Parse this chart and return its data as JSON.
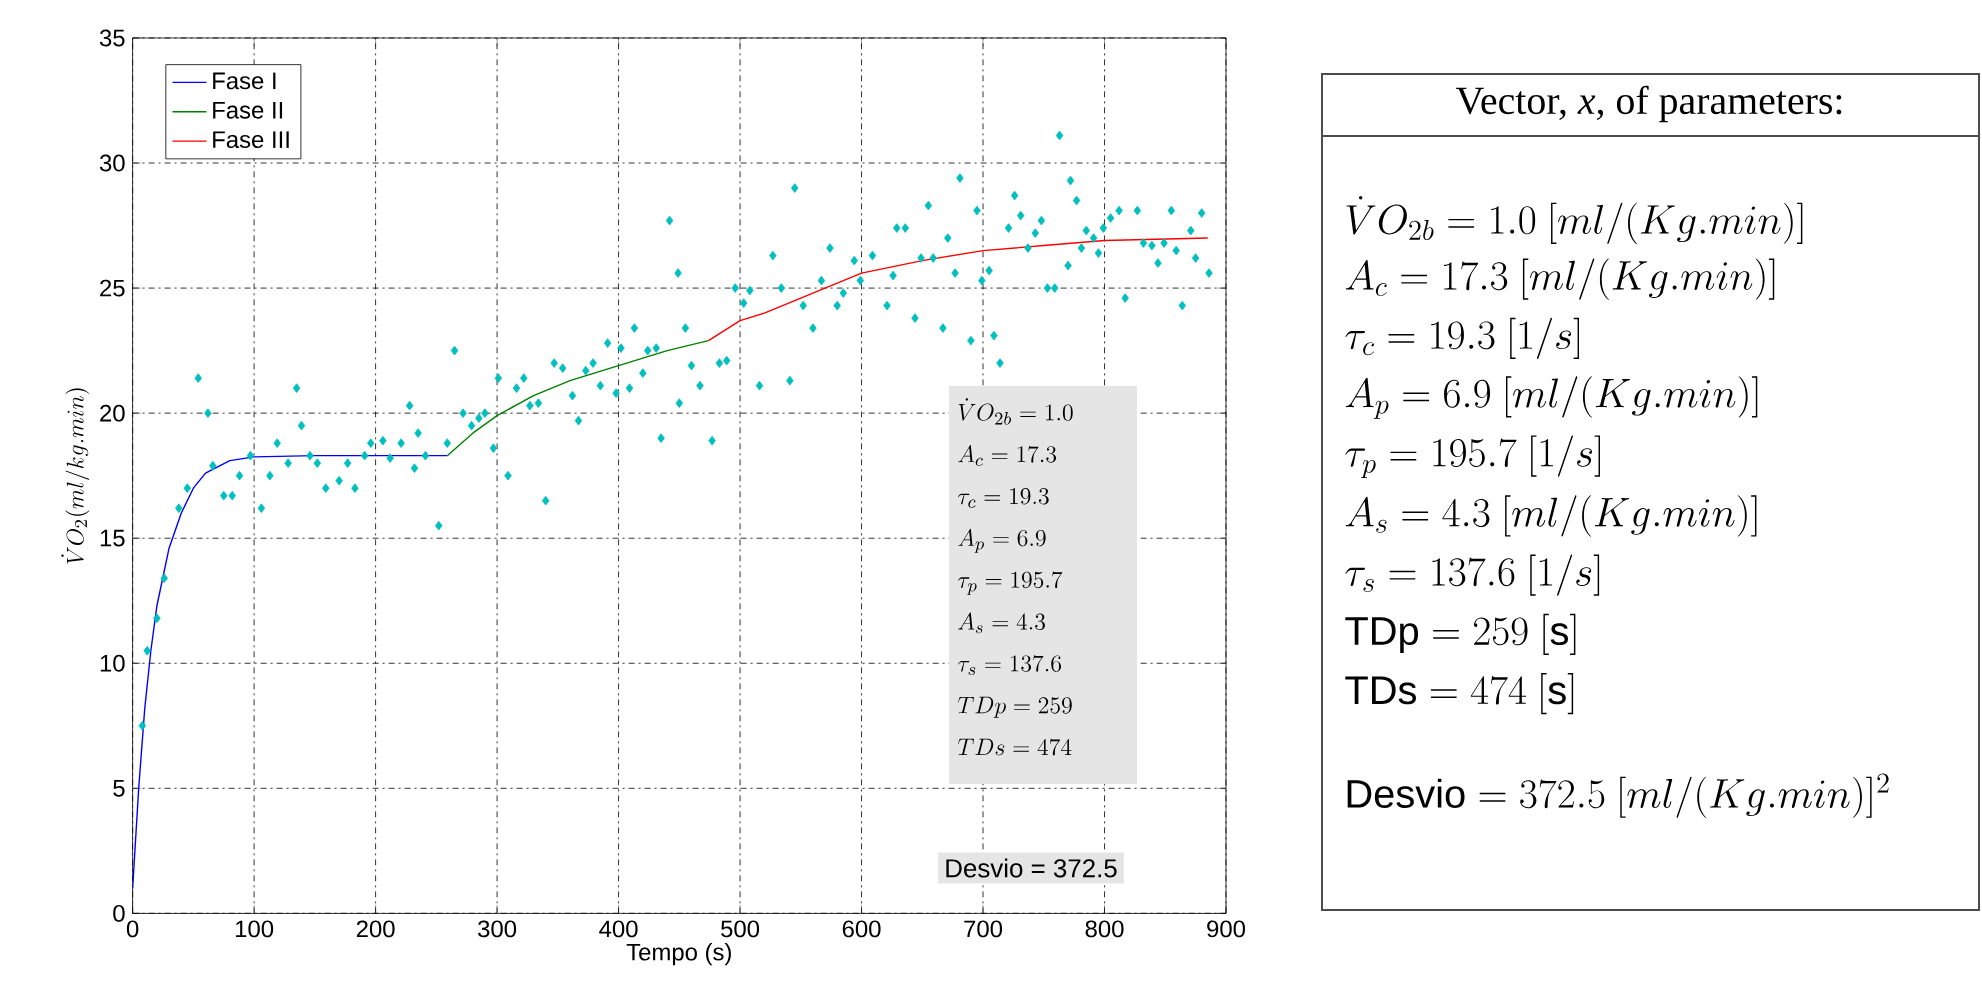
{
  "chart_data": [
    {
      "type": "scatter",
      "xlabel": "Tempo (s)",
      "ylabel": "\\dot{V}O_2(ml/kg.min)",
      "xlim": [
        0,
        900
      ],
      "ylim": [
        0,
        35
      ],
      "xticks": [
        0,
        100,
        200,
        300,
        400,
        500,
        600,
        700,
        800,
        900
      ],
      "yticks": [
        0,
        5,
        10,
        15,
        20,
        25,
        30,
        35
      ],
      "grid": true,
      "legend": "top left",
      "annotations": [
        "\\dot{V}O_{2b} = 1.0",
        "A_c = 17.3",
        "\\tau_c = 19.3",
        "A_p = 6.9",
        "\\tau_p = 195.7",
        "A_s = 4.3",
        "\\tau_s = 137.6",
        "TDp = 259",
        "TDs = 474",
        "Desvio = 372.5"
      ],
      "series": [
        {
          "type": "scatter",
          "color": "#00bfbf",
          "marker": "diamond",
          "x": [
            8,
            12,
            20,
            26,
            38,
            45,
            54,
            62,
            66,
            75,
            82,
            88,
            97,
            106,
            113,
            119,
            128,
            135,
            139,
            146,
            152,
            159,
            170,
            177,
            183,
            191,
            196,
            206,
            212,
            221,
            228,
            232,
            235,
            241,
            252,
            259,
            265,
            272,
            279,
            285,
            290,
            297,
            301,
            309,
            316,
            322,
            327,
            334,
            340,
            347,
            354,
            362,
            367,
            373,
            379,
            385,
            391,
            398,
            402,
            409,
            413,
            420,
            424,
            431,
            435,
            442,
            449,
            450,
            455,
            460,
            467,
            477,
            483,
            489,
            496,
            503,
            508,
            516,
            527,
            534,
            541,
            545,
            552,
            560,
            567,
            574,
            580,
            585,
            594,
            599,
            609,
            621,
            626,
            629,
            636,
            644,
            649,
            655,
            659,
            667,
            671,
            677,
            681,
            690,
            695,
            699,
            705,
            709,
            714,
            721,
            726,
            731,
            737,
            743,
            748,
            753,
            759,
            763,
            770,
            772,
            777,
            781,
            785,
            791,
            795,
            799,
            805,
            812,
            817,
            827,
            832,
            839,
            844,
            849,
            855,
            859,
            864,
            871,
            875,
            880,
            886
          ],
          "values": [
            7.5,
            10.5,
            11.8,
            13.4,
            16.2,
            17.0,
            21.4,
            20.0,
            17.9,
            16.7,
            16.7,
            17.5,
            18.3,
            16.2,
            17.5,
            18.8,
            18.0,
            21.0,
            19.5,
            18.3,
            18.0,
            17.0,
            17.3,
            18.0,
            17.0,
            18.3,
            18.8,
            18.9,
            18.2,
            18.8,
            20.3,
            17.8,
            19.2,
            18.3,
            15.5,
            18.8,
            22.5,
            20.0,
            19.5,
            19.8,
            20.0,
            18.6,
            21.4,
            17.5,
            21.0,
            21.4,
            20.3,
            20.4,
            16.5,
            22.0,
            21.8,
            20.7,
            19.7,
            21.7,
            22.0,
            21.1,
            22.8,
            20.8,
            22.6,
            21.0,
            23.4,
            21.6,
            22.5,
            22.6,
            19.0,
            27.7,
            25.6,
            20.4,
            23.4,
            21.9,
            21.1,
            18.9,
            22.0,
            22.1,
            25.0,
            24.4,
            24.9,
            21.1,
            26.3,
            25.0,
            21.3,
            29.0,
            24.3,
            23.4,
            25.3,
            26.6,
            24.3,
            24.8,
            26.1,
            25.3,
            26.3,
            24.3,
            25.5,
            27.4,
            27.4,
            23.8,
            26.2,
            28.3,
            26.2,
            23.4,
            27.0,
            25.6,
            29.4,
            22.9,
            28.1,
            25.3,
            25.7,
            23.1,
            22.0,
            27.4,
            28.7,
            27.9,
            26.6,
            27.2,
            27.7,
            25.0,
            25.0,
            31.1,
            25.9,
            29.3,
            28.5,
            26.6,
            27.3,
            27.0,
            26.4,
            27.4,
            27.8,
            28.1,
            24.6,
            28.1,
            26.8,
            26.7,
            26.0,
            26.8,
            28.1,
            26.5,
            24.3,
            27.3,
            26.2,
            28.0,
            25.6
          ]
        },
        {
          "type": "line",
          "name": "Fase I",
          "color": "#0000ff",
          "marker": "none",
          "x": [
            0,
            5,
            10,
            15,
            20,
            30,
            40,
            50,
            60,
            80,
            100,
            150,
            259
          ],
          "values": [
            1.0,
            5.0,
            8.2,
            10.5,
            12.3,
            14.6,
            16.0,
            17.0,
            17.6,
            18.1,
            18.25,
            18.3,
            18.3
          ]
        },
        {
          "type": "line",
          "name": "Fase II",
          "color": "#008000",
          "marker": "none",
          "x": [
            259,
            280,
            300,
            330,
            360,
            400,
            440,
            474
          ],
          "values": [
            18.3,
            19.2,
            19.9,
            20.7,
            21.3,
            21.9,
            22.5,
            22.9
          ]
        },
        {
          "type": "line",
          "name": "Fase III",
          "color": "#ff0000",
          "marker": "none",
          "x": [
            474,
            500,
            520,
            550,
            600,
            650,
            700,
            750,
            800,
            885
          ],
          "values": [
            22.9,
            23.7,
            24.0,
            24.6,
            25.6,
            26.1,
            26.5,
            26.7,
            26.9,
            27.0
          ]
        }
      ]
    },
    {
      "type": "other",
      "title": "Vector, *x*, of parameters:",
      "annotations": [
        "\\dot{V}O_{2b} = 1.0\\ [ml/(Kg.min)]",
        "A_c = 17.3\\ [ml/(Kg.min)]",
        "\\tau_c = 19.3\\ [1/s]",
        "A_p = 6.9\\ [ml/(Kg.min)]",
        "\\tau_p = 195.7\\ [1/s]",
        "A_s = 4.3\\ [ml/(Kg.min)]",
        "\\tau_s = 137.6\\ [1/s]",
        "\\mathrm{TDp} = 259\\ [\\mathrm{s}]",
        "\\mathrm{TDs} = 474\\ [\\mathrm{s}]",
        "\\mathrm{Desvio} = 372.5\\ [ml/(Kg.min)]^2"
      ]
    }
  ]
}
